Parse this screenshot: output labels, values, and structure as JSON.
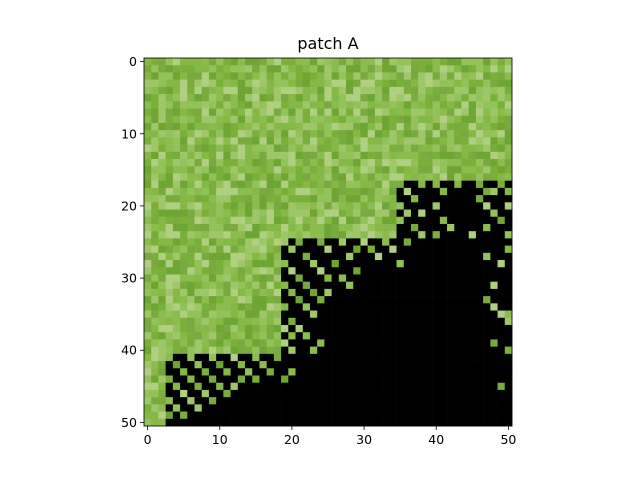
{
  "chart_data": {
    "type": "heatmap",
    "title": "patch A",
    "xlabel": "",
    "ylabel": "",
    "grid": false,
    "xlim": [
      -0.5,
      50.5
    ],
    "ylim": [
      50.5,
      -0.5
    ],
    "x_ticks": [
      "0",
      "10",
      "20",
      "30",
      "40",
      "50"
    ],
    "y_ticks": [
      "0",
      "10",
      "20",
      "30",
      "40",
      "50"
    ],
    "rows": 51,
    "cols": 51,
    "masked_color": "#000000",
    "texture_colors": [
      "#86b846",
      "#7ab03a",
      "#94c25a",
      "#6fa532",
      "#a0c66a",
      "#8cbc4e",
      "#b0cf80",
      "#79a93f"
    ],
    "boundary": [
      {
        "rows": [
          0,
          16
        ],
        "max_col": 50
      },
      {
        "rows": [
          17,
          24
        ],
        "max_col": 34
      },
      {
        "rows": [
          25,
          40
        ],
        "max_col": 18
      },
      {
        "rows": [
          41,
          50
        ],
        "max_col": 2
      }
    ],
    "speckles": [
      [
        17,
        35
      ],
      [
        17,
        38
      ],
      [
        17,
        40
      ],
      [
        17,
        43
      ],
      [
        17,
        46
      ],
      [
        17,
        49
      ],
      [
        18,
        36
      ],
      [
        18,
        41
      ],
      [
        18,
        47
      ],
      [
        18,
        48
      ],
      [
        18,
        50
      ],
      [
        19,
        37
      ],
      [
        19,
        46
      ],
      [
        20,
        35
      ],
      [
        20,
        40
      ],
      [
        20,
        47
      ],
      [
        20,
        50
      ],
      [
        21,
        36
      ],
      [
        21,
        38
      ],
      [
        21,
        48
      ],
      [
        22,
        35
      ],
      [
        22,
        41
      ],
      [
        22,
        49
      ],
      [
        23,
        37
      ],
      [
        23,
        42
      ],
      [
        23,
        47
      ],
      [
        24,
        38
      ],
      [
        24,
        40
      ],
      [
        24,
        45
      ],
      [
        24,
        50
      ],
      [
        25,
        19
      ],
      [
        25,
        21
      ],
      [
        25,
        24
      ],
      [
        25,
        27
      ],
      [
        25,
        30
      ],
      [
        25,
        33
      ],
      [
        25,
        36
      ],
      [
        26,
        20
      ],
      [
        26,
        25
      ],
      [
        26,
        29
      ],
      [
        26,
        31
      ],
      [
        26,
        34
      ],
      [
        26,
        50
      ],
      [
        27,
        22
      ],
      [
        27,
        28
      ],
      [
        27,
        32
      ],
      [
        27,
        47
      ],
      [
        28,
        19
      ],
      [
        28,
        23
      ],
      [
        28,
        26
      ],
      [
        28,
        35
      ],
      [
        28,
        49
      ],
      [
        29,
        20
      ],
      [
        29,
        24
      ],
      [
        29,
        29
      ],
      [
        30,
        21
      ],
      [
        30,
        25
      ],
      [
        30,
        27
      ],
      [
        31,
        19
      ],
      [
        31,
        22
      ],
      [
        31,
        28
      ],
      [
        31,
        48
      ],
      [
        32,
        20
      ],
      [
        32,
        23
      ],
      [
        32,
        25
      ],
      [
        33,
        21
      ],
      [
        33,
        24
      ],
      [
        33,
        47
      ],
      [
        34,
        19
      ],
      [
        34,
        22
      ],
      [
        34,
        48
      ],
      [
        35,
        23
      ],
      [
        35,
        49
      ],
      [
        35,
        50
      ],
      [
        36,
        20
      ],
      [
        36,
        50
      ],
      [
        37,
        19
      ],
      [
        37,
        21
      ],
      [
        38,
        22
      ],
      [
        38,
        20
      ],
      [
        39,
        19
      ],
      [
        39,
        24
      ],
      [
        39,
        48
      ],
      [
        40,
        20
      ],
      [
        40,
        23
      ],
      [
        40,
        50
      ],
      [
        41,
        3
      ],
      [
        41,
        6
      ],
      [
        41,
        9
      ],
      [
        41,
        12
      ],
      [
        41,
        15
      ],
      [
        41,
        18
      ],
      [
        42,
        4
      ],
      [
        42,
        7
      ],
      [
        42,
        10
      ],
      [
        42,
        13
      ],
      [
        42,
        16
      ],
      [
        43,
        5
      ],
      [
        43,
        8
      ],
      [
        43,
        11
      ],
      [
        43,
        14
      ],
      [
        43,
        17
      ],
      [
        43,
        20
      ],
      [
        44,
        3
      ],
      [
        44,
        6
      ],
      [
        44,
        9
      ],
      [
        44,
        13
      ],
      [
        44,
        15
      ],
      [
        44,
        19
      ],
      [
        45,
        4
      ],
      [
        45,
        7
      ],
      [
        45,
        10
      ],
      [
        45,
        12
      ],
      [
        45,
        49
      ],
      [
        46,
        5
      ],
      [
        46,
        8
      ],
      [
        46,
        11
      ],
      [
        47,
        3
      ],
      [
        47,
        6
      ],
      [
        47,
        9
      ],
      [
        48,
        4
      ],
      [
        48,
        7
      ],
      [
        49,
        5
      ],
      [
        49,
        3
      ]
    ]
  }
}
